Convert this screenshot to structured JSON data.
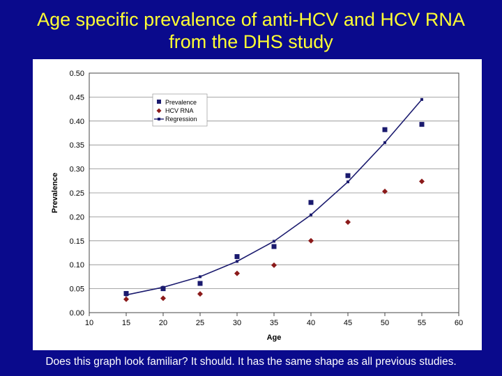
{
  "slide": {
    "title_line1": "Age specific prevalence of anti-HCV and HCV RNA",
    "title_line2": "from the DHS study",
    "footer": "Does this graph look familiar? It should. It has the same shape as all previous studies."
  },
  "colors": {
    "background": "#0a0a8c",
    "title": "#ffff33",
    "prevalence": "#1a1a6e",
    "hcv_rna": "#8b1a1a",
    "regression": "#1a1a6e"
  },
  "chart_data": {
    "type": "scatter",
    "title": "",
    "xlabel": "Age",
    "ylabel": "Prevalence",
    "xlim": [
      10,
      60
    ],
    "ylim": [
      0,
      0.5
    ],
    "x_ticks": [
      "10",
      "15",
      "20",
      "25",
      "30",
      "35",
      "40",
      "45",
      "50",
      "55",
      "60"
    ],
    "y_ticks": [
      "0.00",
      "0.05",
      "0.10",
      "0.15",
      "0.20",
      "0.25",
      "0.30",
      "0.35",
      "0.40",
      "0.45",
      "0.50"
    ],
    "grid": true,
    "legend_position": "top-left",
    "series": [
      {
        "name": "Prevalence",
        "marker": "square",
        "x": [
          15,
          20,
          25,
          30,
          35,
          40,
          45,
          50,
          55
        ],
        "y": [
          0.04,
          0.05,
          0.061,
          0.117,
          0.138,
          0.23,
          0.286,
          0.382,
          0.393
        ]
      },
      {
        "name": "HCV RNA",
        "marker": "diamond",
        "x": [
          15,
          20,
          25,
          30,
          35,
          40,
          45,
          50,
          55
        ],
        "y": [
          0.028,
          0.03,
          0.039,
          0.082,
          0.099,
          0.15,
          0.189,
          0.253,
          0.274
        ]
      },
      {
        "name": "Regression",
        "marker": "line",
        "x": [
          15,
          20,
          25,
          30,
          35,
          40,
          45,
          50,
          55
        ],
        "y": [
          0.037,
          0.053,
          0.075,
          0.107,
          0.149,
          0.204,
          0.273,
          0.355,
          0.445
        ]
      }
    ]
  }
}
